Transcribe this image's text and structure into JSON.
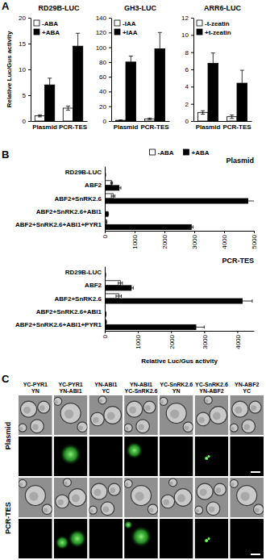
{
  "panel_labels": [
    "A",
    "B",
    "C"
  ],
  "chart_data": [
    {
      "type": "bar",
      "title": "RD29B-LUC",
      "ylabel": "Relative Luc/Gus activity",
      "categories": [
        "Plasmid",
        "PCR-TES"
      ],
      "series": [
        {
          "name": "-ABA",
          "color": "#ffffff",
          "values": [
            1,
            2.5
          ],
          "errors": [
            0.2,
            0.4
          ]
        },
        {
          "name": "+ABA",
          "color": "#000000",
          "values": [
            7,
            14.5
          ],
          "errors": [
            1.3,
            2.5
          ]
        }
      ],
      "ylim": [
        0,
        20
      ],
      "yticks": [
        0,
        5,
        10,
        15,
        20
      ],
      "legend": "upper left"
    },
    {
      "type": "bar",
      "title": "GH3-LUC",
      "categories": [
        "Plasmid",
        "PCR-TES"
      ],
      "series": [
        {
          "name": "-IAA",
          "color": "#ffffff",
          "values": [
            1,
            3
          ],
          "errors": [
            0.5,
            1
          ]
        },
        {
          "name": "+IAA",
          "color": "#000000",
          "values": [
            80,
            98
          ],
          "errors": [
            8,
            22
          ]
        }
      ],
      "ylim": [
        0,
        140
      ],
      "yticks": [
        0,
        20,
        40,
        60,
        80,
        100,
        120,
        140
      ],
      "legend": "upper left"
    },
    {
      "type": "bar",
      "title": "ARR6-LUC",
      "categories": [
        "Plasmid",
        "PCR-TES"
      ],
      "series": [
        {
          "name": "-t-zeatin",
          "color": "#ffffff",
          "values": [
            1,
            0.5
          ],
          "errors": [
            0.2,
            0.2
          ]
        },
        {
          "name": "+t-zeatin",
          "color": "#000000",
          "values": [
            6.7,
            4.4
          ],
          "errors": [
            1.2,
            1.5
          ]
        }
      ],
      "ylim": [
        0,
        12
      ],
      "yticks": [
        0,
        2,
        4,
        6,
        8,
        10,
        12
      ],
      "legend": "upper left"
    },
    {
      "type": "bar",
      "orientation": "horizontal",
      "title": "Plasmid",
      "categories": [
        "RD29B-LUC",
        "ABF2",
        "ABF2+SnRK2.6",
        "ABF2+SnRK2.6+ABI1",
        "ABF2+SnRK2.6+ABI1+PYR1"
      ],
      "series": [
        {
          "name": "-ABA",
          "color": "#ffffff",
          "values": [
            15,
            230,
            280,
            10,
            60
          ],
          "errors": [
            2,
            30,
            60,
            2,
            10
          ]
        },
        {
          "name": "+ABA",
          "color": "#000000",
          "values": [
            20,
            480,
            4800,
            110,
            2900
          ],
          "errors": [
            3,
            60,
            380,
            15,
            60
          ]
        }
      ],
      "xlim": [
        0,
        5000
      ],
      "xticks": [
        0,
        1000,
        2000,
        3000,
        4000,
        5000
      ],
      "legend": "top"
    },
    {
      "type": "bar",
      "orientation": "horizontal",
      "title": "PCR-TES",
      "xlabel": "Relative Luc/Gus activity",
      "categories": [
        "RD29B-LUC",
        "ABF2",
        "ABF2+SnRK2.6",
        "ABF2+SnRK2.6+ABI1",
        "ABF2+SnRK2.6+ABI1+PYR1"
      ],
      "series": [
        {
          "color": "#ffffff",
          "values": [
            10,
            470,
            420,
            10,
            40
          ],
          "errors": [
            2,
            60,
            80,
            2,
            10
          ]
        },
        {
          "color": "#000000",
          "values": [
            20,
            800,
            4150,
            30,
            2750
          ],
          "errors": [
            3,
            60,
            300,
            5,
            250
          ]
        }
      ],
      "xlim": [
        0,
        4500
      ],
      "xticks": [
        0,
        1000,
        2000,
        3000,
        4000
      ]
    }
  ],
  "bifc": {
    "rows": [
      "Plasmid",
      "PCR-TES"
    ],
    "columns": [
      [
        "YC-PYR1",
        "YN"
      ],
      [
        "YC-PYR1",
        "YN-ABI1"
      ],
      [
        "YN-ABI1",
        "YC"
      ],
      [
        "YN-ABI1",
        "YC-SnRK2.6"
      ],
      [
        "YC-SnRK2.6",
        "YN"
      ],
      [
        "YC-SnRK2.6",
        "YN-ABF2"
      ],
      [
        "YN-ABF2",
        "YC"
      ]
    ]
  }
}
